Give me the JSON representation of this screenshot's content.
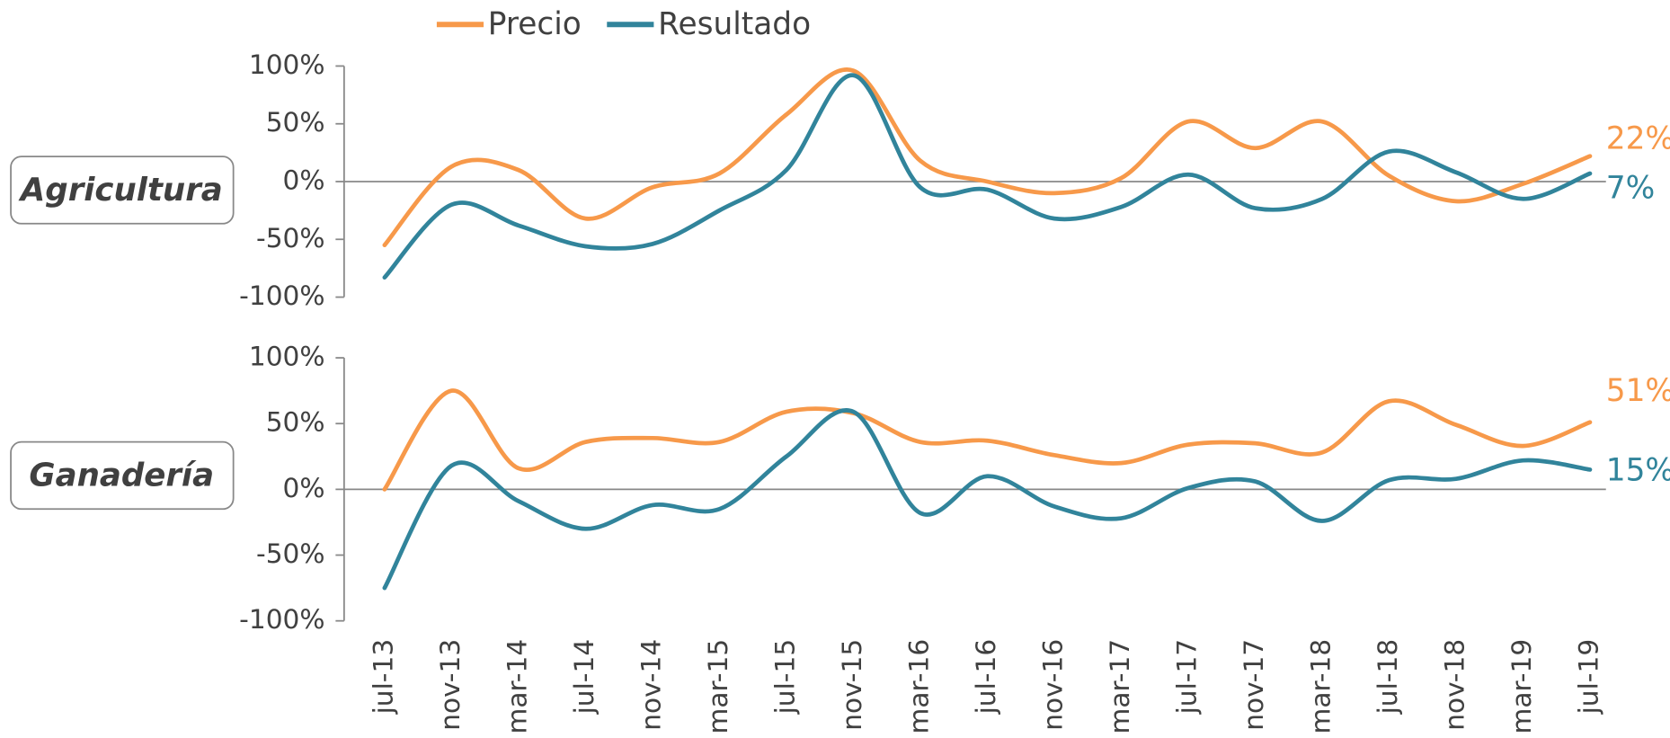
{
  "chart_data": [
    {
      "type": "line",
      "title": "Agricultura",
      "ylim": [
        -100,
        100
      ],
      "yticks": [
        {
          "value": -100,
          "label": "-100%"
        },
        {
          "value": -50,
          "label": "-50%"
        },
        {
          "value": 0,
          "label": "0%"
        },
        {
          "value": 50,
          "label": "50%"
        },
        {
          "value": 100,
          "label": "100%"
        }
      ],
      "legend": "top",
      "series": [
        {
          "name": "Precio",
          "color": "#f7994a",
          "values": [
            -55,
            13,
            10,
            -32,
            -5,
            7,
            58,
            96,
            18,
            0,
            -10,
            3,
            52,
            29,
            52,
            5,
            -17,
            -2,
            22
          ],
          "value_labels": [
            null,
            null,
            null,
            null,
            null,
            null,
            null,
            null,
            null,
            null,
            null,
            null,
            null,
            null,
            null,
            null,
            null,
            null,
            "22%"
          ]
        },
        {
          "name": "Resultado",
          "color": "#31849b",
          "values": [
            -83,
            -20,
            -38,
            -56,
            -54,
            -25,
            10,
            92,
            -5,
            -7,
            -32,
            -22,
            6,
            -23,
            -15,
            26,
            8,
            -15,
            7
          ],
          "value_labels": [
            null,
            null,
            null,
            null,
            null,
            null,
            null,
            null,
            null,
            null,
            null,
            null,
            null,
            null,
            null,
            null,
            null,
            null,
            "7%"
          ]
        }
      ]
    },
    {
      "type": "line",
      "title": "Ganadería",
      "categories": [
        "jul-13",
        "nov-13",
        "mar-14",
        "jul-14",
        "nov-14",
        "mar-15",
        "jul-15",
        "nov-15",
        "mar-16",
        "jul-16",
        "nov-16",
        "mar-17",
        "jul-17",
        "nov-17",
        "mar-18",
        "jul-18",
        "nov-18",
        "mar-19",
        "jul-19"
      ],
      "ylim": [
        -100,
        100
      ],
      "yticks": [
        {
          "value": -100,
          "label": "-100%"
        },
        {
          "value": -50,
          "label": "-50%"
        },
        {
          "value": 0,
          "label": "0%"
        },
        {
          "value": 50,
          "label": "50%"
        },
        {
          "value": 100,
          "label": "100%"
        }
      ],
      "series": [
        {
          "color": "#f7994a",
          "values": [
            0,
            75,
            16,
            36,
            39,
            36,
            59,
            58,
            36,
            37,
            26,
            20,
            34,
            35,
            28,
            67,
            49,
            33,
            51
          ],
          "value_labels": [
            null,
            null,
            null,
            null,
            null,
            null,
            null,
            null,
            null,
            null,
            null,
            null,
            null,
            null,
            null,
            null,
            null,
            null,
            "51%"
          ]
        },
        {
          "color": "#31849b",
          "values": [
            -75,
            18,
            -9,
            -30,
            -12,
            -15,
            25,
            59,
            -18,
            10,
            -13,
            -22,
            1,
            6,
            -24,
            7,
            8,
            22,
            15
          ],
          "value_labels": [
            null,
            null,
            null,
            null,
            null,
            null,
            null,
            null,
            null,
            null,
            null,
            null,
            null,
            null,
            null,
            null,
            null,
            null,
            "15%"
          ]
        }
      ]
    }
  ]
}
